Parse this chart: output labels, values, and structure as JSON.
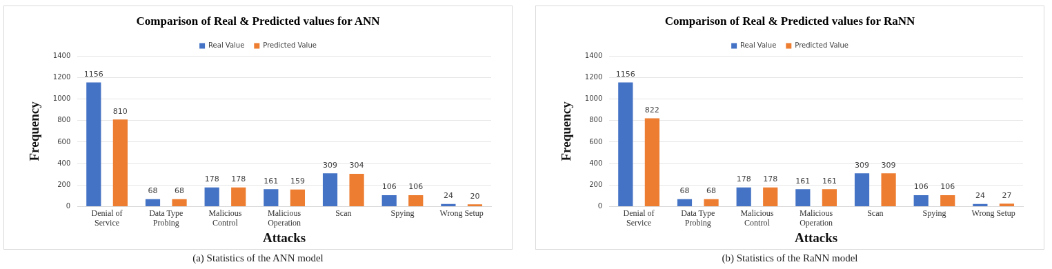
{
  "chart_data": [
    {
      "type": "bar",
      "title": "Comparison of Real & Predicted values for ANN",
      "xlabel": "Attacks",
      "ylabel": "Frequency",
      "categories": [
        "Denial of Service",
        "Data Type Probing",
        "Malicious Control",
        "Malicious Operation",
        "Scan",
        "Spying",
        "Wrong Setup"
      ],
      "series": [
        {
          "name": "Real Value",
          "color": "#4472c4",
          "values": [
            1156,
            68,
            178,
            161,
            309,
            106,
            24
          ]
        },
        {
          "name": "Predicted Value",
          "color": "#ed7d31",
          "values": [
            810,
            68,
            178,
            159,
            304,
            106,
            20
          ]
        }
      ],
      "ylim": [
        0,
        1400
      ],
      "yticks": [
        0,
        200,
        400,
        600,
        800,
        1000,
        1200,
        1400
      ],
      "grid": "y",
      "legend": "top",
      "data_labels": true,
      "annotations": [
        "(a) Statistics of the ANN model"
      ]
    },
    {
      "type": "bar",
      "title": "Comparison of Real & Predicted values for RaNN",
      "xlabel": "Attacks",
      "ylabel": "Frequency",
      "categories": [
        "Denial of Service",
        "Data Type Probing",
        "Malicious Control",
        "Malicious Operation",
        "Scan",
        "Spying",
        "Wrong Setup"
      ],
      "series": [
        {
          "name": "Real Value",
          "color": "#4472c4",
          "values": [
            1156,
            68,
            178,
            161,
            309,
            106,
            24
          ]
        },
        {
          "name": "Predicted Value",
          "color": "#ed7d31",
          "values": [
            822,
            68,
            178,
            161,
            309,
            106,
            27
          ]
        }
      ],
      "ylim": [
        0,
        1400
      ],
      "yticks": [
        0,
        200,
        400,
        600,
        800,
        1000,
        1200,
        1400
      ],
      "grid": "y",
      "legend": "top",
      "data_labels": true,
      "annotations": [
        "(b) Statistics of the RaNN model"
      ]
    }
  ]
}
